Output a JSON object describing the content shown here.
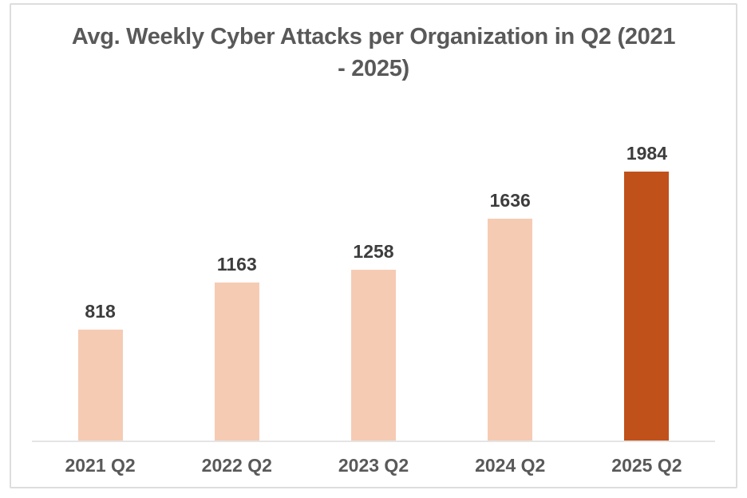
{
  "chart_data": {
    "type": "bar",
    "title": "Avg. Weekly Cyber Attacks per Organization in Q2 (2021 - 2025)",
    "categories": [
      "2021 Q2",
      "2022 Q2",
      "2023 Q2",
      "2024 Q2",
      "2025 Q2"
    ],
    "values": [
      818,
      1163,
      1258,
      1636,
      1984
    ],
    "data_labels": [
      "818",
      "1163",
      "1258",
      "1636",
      "1984"
    ],
    "bar_colors": [
      "#F6CBB3",
      "#F6CBB3",
      "#F6CBB3",
      "#F6CBB3",
      "#C1511A"
    ],
    "xlabel": "",
    "ylabel": "",
    "ylim": [
      0,
      2600
    ],
    "grid": false,
    "legend": false,
    "axis_visible": "x-only"
  },
  "colors": {
    "title_text": "#595959",
    "value_label_text": "#3D3D3D",
    "category_label_text": "#595959",
    "axis_line": "#E4E4E4",
    "frame_border": "#DDDDDD",
    "bar_default": "#F6CBB3",
    "bar_highlight": "#C1511A",
    "background": "#FFFFFF"
  }
}
